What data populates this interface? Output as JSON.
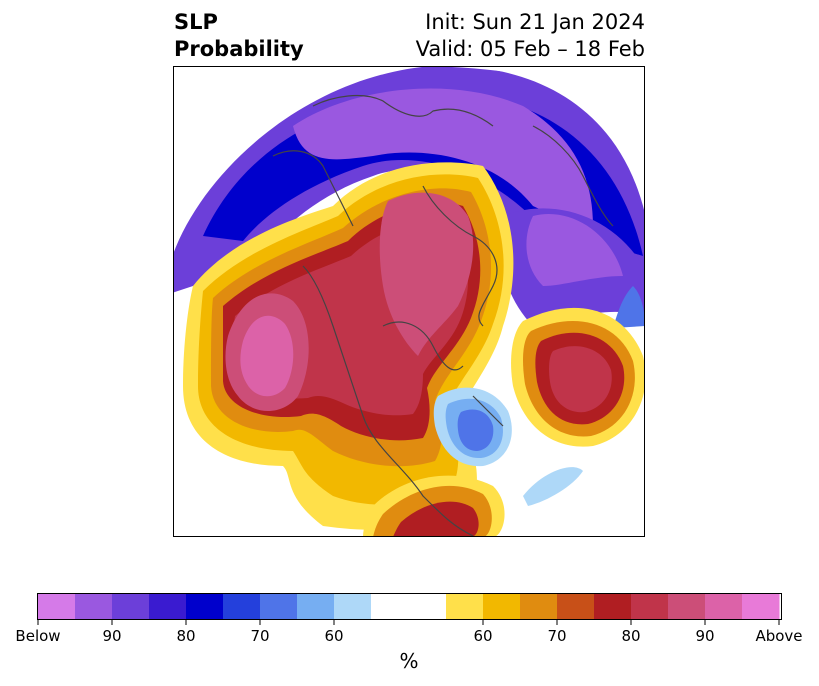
{
  "title": {
    "left_line1": "SLP",
    "left_line2": "Probability",
    "right_line1": "Init: Sun 21 Jan 2024",
    "right_line2": "Valid: 05 Feb – 18 Feb"
  },
  "colorbar": {
    "unit": "%",
    "tick_labels": [
      "Below",
      "90",
      "80",
      "70",
      "60",
      "60",
      "70",
      "80",
      "90",
      "Above"
    ],
    "below_colors": [
      "#d57ae8",
      "#9a58e0",
      "#6c3fd9",
      "#3a1bd0",
      "#0000cc",
      "#2440dc",
      "#4f74e8",
      "#76aef2",
      "#aed8f8"
    ],
    "neutral_color": "#ffffff",
    "above_colors": [
      "#ffe04a",
      "#f2b800",
      "#e08c10",
      "#c85018",
      "#b01e22",
      "#c0344a",
      "#cc4e78",
      "#dc62a8",
      "#e87ad8"
    ]
  }
}
